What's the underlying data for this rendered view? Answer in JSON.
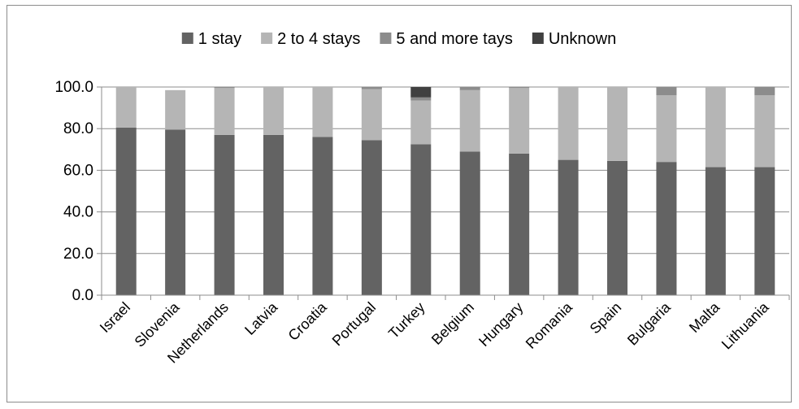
{
  "chart_data": {
    "type": "bar",
    "stacked": true,
    "categories": [
      "Israel",
      "Slovenia",
      "Netherlands",
      "Latvia",
      "Croatia",
      "Portugal",
      "Turkey",
      "Belgium",
      "Hungary",
      "Romania",
      "Spain",
      "Bulgaria",
      "Malta",
      "Lithuania"
    ],
    "series": [
      {
        "name": "1 stay",
        "color": "#636363",
        "values": [
          80.5,
          79.5,
          77.0,
          77.0,
          76.0,
          74.5,
          72.5,
          69.0,
          68.0,
          65.0,
          64.5,
          64.0,
          61.5,
          61.5
        ]
      },
      {
        "name": "2 to 4 stays",
        "color": "#b5b5b5",
        "values": [
          19.5,
          19.0,
          22.5,
          23.0,
          24.0,
          24.5,
          21.0,
          29.5,
          31.5,
          35.0,
          35.5,
          32.0,
          38.5,
          34.5
        ]
      },
      {
        "name": "5 and more tays",
        "color": "#8c8c8c",
        "values": [
          0.0,
          0.0,
          0.5,
          0.0,
          0.0,
          1.0,
          1.5,
          1.5,
          0.5,
          0.0,
          0.0,
          4.0,
          0.0,
          4.0
        ]
      },
      {
        "name": "Unknown",
        "color": "#404040",
        "values": [
          0.0,
          0.0,
          0.0,
          0.0,
          0.0,
          0.0,
          5.0,
          0.0,
          0.0,
          0.0,
          0.0,
          0.0,
          0.0,
          0.0
        ]
      }
    ],
    "yticks": [
      "0.0",
      "20.0",
      "40.0",
      "60.0",
      "80.0",
      "100.0"
    ],
    "ylim": [
      0,
      100
    ],
    "grid": true,
    "legend": "top"
  }
}
